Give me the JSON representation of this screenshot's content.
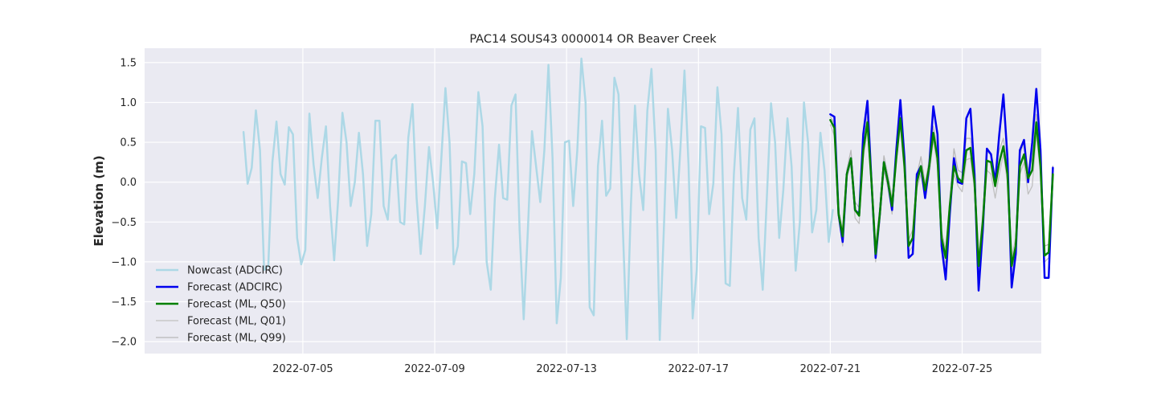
{
  "chart_data": {
    "type": "line",
    "title": "PAC14 SOUS43 0000014 OR Beaver Creek",
    "xlabel": "",
    "ylabel": "Elevation (m)",
    "x_ticks": [
      "2022-07-05",
      "2022-07-09",
      "2022-07-13",
      "2022-07-17",
      "2022-07-21",
      "2022-07-25"
    ],
    "x_tick_days": [
      4,
      8,
      12,
      16,
      20,
      24
    ],
    "xlim_days": [
      -0.8,
      26.4
    ],
    "x_origin_date": "2022-07-01",
    "ylim": [
      -2.15,
      1.68
    ],
    "y_ticks": [
      1.5,
      1.0,
      0.5,
      0.0,
      -0.5,
      -1.0,
      -1.5,
      -2.0
    ],
    "y_tick_labels": [
      "1.5",
      "1.0",
      "0.5",
      "0.0",
      "−0.5",
      "−1.0",
      "−1.5",
      "−2.0"
    ],
    "grid": true,
    "legend_position": "lower-left",
    "background_color": "#EAEAF2",
    "series": [
      {
        "name": "Nowcast (ADCIRC)",
        "color": "#ADD8E6",
        "width": 2.5,
        "x_start_day": 2.2,
        "step_day": 0.125,
        "values": [
          0.63,
          -0.02,
          0.18,
          0.9,
          0.4,
          -1.1,
          -1.05,
          0.25,
          0.76,
          0.1,
          -0.03,
          0.69,
          0.6,
          -0.7,
          -1.03,
          -0.85,
          0.86,
          0.22,
          -0.2,
          0.3,
          0.7,
          -0.3,
          -0.98,
          -0.2,
          0.87,
          0.5,
          -0.3,
          0.0,
          0.62,
          0.1,
          -0.8,
          -0.4,
          0.77,
          0.77,
          -0.3,
          -0.47,
          0.28,
          0.34,
          -0.5,
          -0.53,
          0.56,
          0.98,
          -0.2,
          -0.9,
          -0.3,
          0.44,
          0.0,
          -0.58,
          0.3,
          1.18,
          0.5,
          -1.03,
          -0.8,
          0.26,
          0.24,
          -0.4,
          0.1,
          1.13,
          0.7,
          -1.0,
          -1.35,
          -0.2,
          0.47,
          -0.2,
          -0.22,
          0.96,
          1.1,
          -0.6,
          -1.72,
          -0.6,
          0.64,
          0.2,
          -0.25,
          0.4,
          1.47,
          0.3,
          -1.77,
          -1.2,
          0.5,
          0.52,
          -0.3,
          0.4,
          1.55,
          1.0,
          -1.57,
          -1.67,
          0.2,
          0.77,
          -0.17,
          -0.08,
          1.31,
          1.1,
          -0.5,
          -1.97,
          -0.3,
          0.96,
          0.1,
          -0.35,
          0.9,
          1.42,
          0.4,
          -1.98,
          -0.6,
          0.92,
          0.4,
          -0.45,
          0.4,
          1.4,
          0.2,
          -1.71,
          -1.1,
          0.7,
          0.68,
          -0.4,
          -0.02,
          1.19,
          0.6,
          -1.27,
          -1.3,
          0.1,
          0.93,
          -0.2,
          -0.47,
          0.66,
          0.8,
          -0.7,
          -1.35,
          -0.2,
          0.99,
          0.5,
          -0.7,
          -0.1,
          0.8,
          0.2,
          -1.11,
          -0.5,
          1.0,
          0.5,
          -0.63,
          -0.35,
          0.62,
          0.15,
          -0.75,
          -0.35
        ]
      },
      {
        "name": "Forecast (ADCIRC)",
        "color": "#0000EE",
        "width": 2.5,
        "x_start_day": 20.0,
        "step_day": 0.125,
        "values": [
          0.85,
          0.82,
          -0.4,
          -0.75,
          0.1,
          0.3,
          -0.35,
          -0.4,
          0.6,
          1.02,
          0.0,
          -0.95,
          -0.4,
          0.25,
          0.0,
          -0.35,
          0.4,
          1.03,
          0.3,
          -0.95,
          -0.9,
          0.1,
          0.2,
          -0.2,
          0.2,
          0.95,
          0.6,
          -0.8,
          -1.22,
          -0.4,
          0.3,
          0.0,
          -0.02,
          0.8,
          0.92,
          0.1,
          -1.36,
          -0.6,
          0.42,
          0.35,
          0.0,
          0.6,
          1.1,
          0.3,
          -1.32,
          -0.9,
          0.4,
          0.53,
          0.0,
          0.5,
          1.17,
          0.4,
          -1.2,
          -1.2,
          0.18
        ]
      },
      {
        "name": "Forecast (ML, Q50)",
        "color": "#008000",
        "width": 2.5,
        "x_start_day": 20.0,
        "step_day": 0.125,
        "values": [
          0.78,
          0.68,
          -0.4,
          -0.68,
          0.1,
          0.3,
          -0.35,
          -0.42,
          0.4,
          0.75,
          0.0,
          -0.9,
          -0.4,
          0.25,
          0.0,
          -0.3,
          0.3,
          0.8,
          0.2,
          -0.8,
          -0.7,
          0.0,
          0.2,
          -0.1,
          0.2,
          0.62,
          0.3,
          -0.7,
          -0.95,
          -0.3,
          0.2,
          0.05,
          0.0,
          0.4,
          0.43,
          0.0,
          -1.05,
          -0.5,
          0.27,
          0.25,
          -0.05,
          0.25,
          0.45,
          0.1,
          -1.05,
          -0.8,
          0.2,
          0.35,
          0.05,
          0.15,
          0.75,
          0.2,
          -0.92,
          -0.88,
          0.1
        ]
      },
      {
        "name": "Forecast (ML, Q01)",
        "color": "#C0C0C0",
        "width": 1.3,
        "x_start_day": 20.0,
        "step_day": 0.125,
        "values": [
          0.72,
          0.58,
          -0.45,
          -0.8,
          0.05,
          0.25,
          -0.45,
          -0.52,
          0.3,
          0.65,
          -0.1,
          -1.0,
          -0.5,
          0.15,
          -0.08,
          -0.4,
          0.25,
          0.7,
          0.1,
          -0.88,
          -0.8,
          -0.08,
          0.1,
          -0.2,
          0.1,
          0.52,
          0.2,
          -0.78,
          -1.05,
          -0.38,
          0.1,
          -0.05,
          -0.12,
          0.28,
          0.3,
          -0.1,
          -1.12,
          -0.6,
          0.15,
          0.1,
          -0.2,
          0.1,
          0.35,
          0.0,
          -1.12,
          -0.88,
          0.1,
          0.25,
          -0.15,
          -0.05,
          0.6,
          0.1,
          -1.0,
          -0.95,
          0.0
        ]
      },
      {
        "name": "Forecast (ML, Q99)",
        "color": "#B8B8B8",
        "width": 1.3,
        "x_start_day": 20.0,
        "step_day": 0.125,
        "values": [
          0.82,
          0.74,
          -0.35,
          -0.6,
          0.15,
          0.4,
          -0.25,
          -0.32,
          0.5,
          0.82,
          0.08,
          -0.8,
          -0.32,
          0.33,
          0.08,
          -0.22,
          0.38,
          0.88,
          0.28,
          -0.72,
          -0.6,
          0.08,
          0.32,
          -0.02,
          0.28,
          0.7,
          0.4,
          -0.62,
          -0.85,
          -0.22,
          0.42,
          0.15,
          0.12,
          0.55,
          0.55,
          0.1,
          -0.95,
          -0.4,
          0.38,
          0.35,
          0.05,
          0.4,
          0.55,
          0.2,
          -0.95,
          -0.7,
          0.35,
          0.5,
          0.15,
          0.3,
          0.85,
          0.3,
          -0.8,
          -0.78,
          0.2
        ]
      }
    ]
  }
}
